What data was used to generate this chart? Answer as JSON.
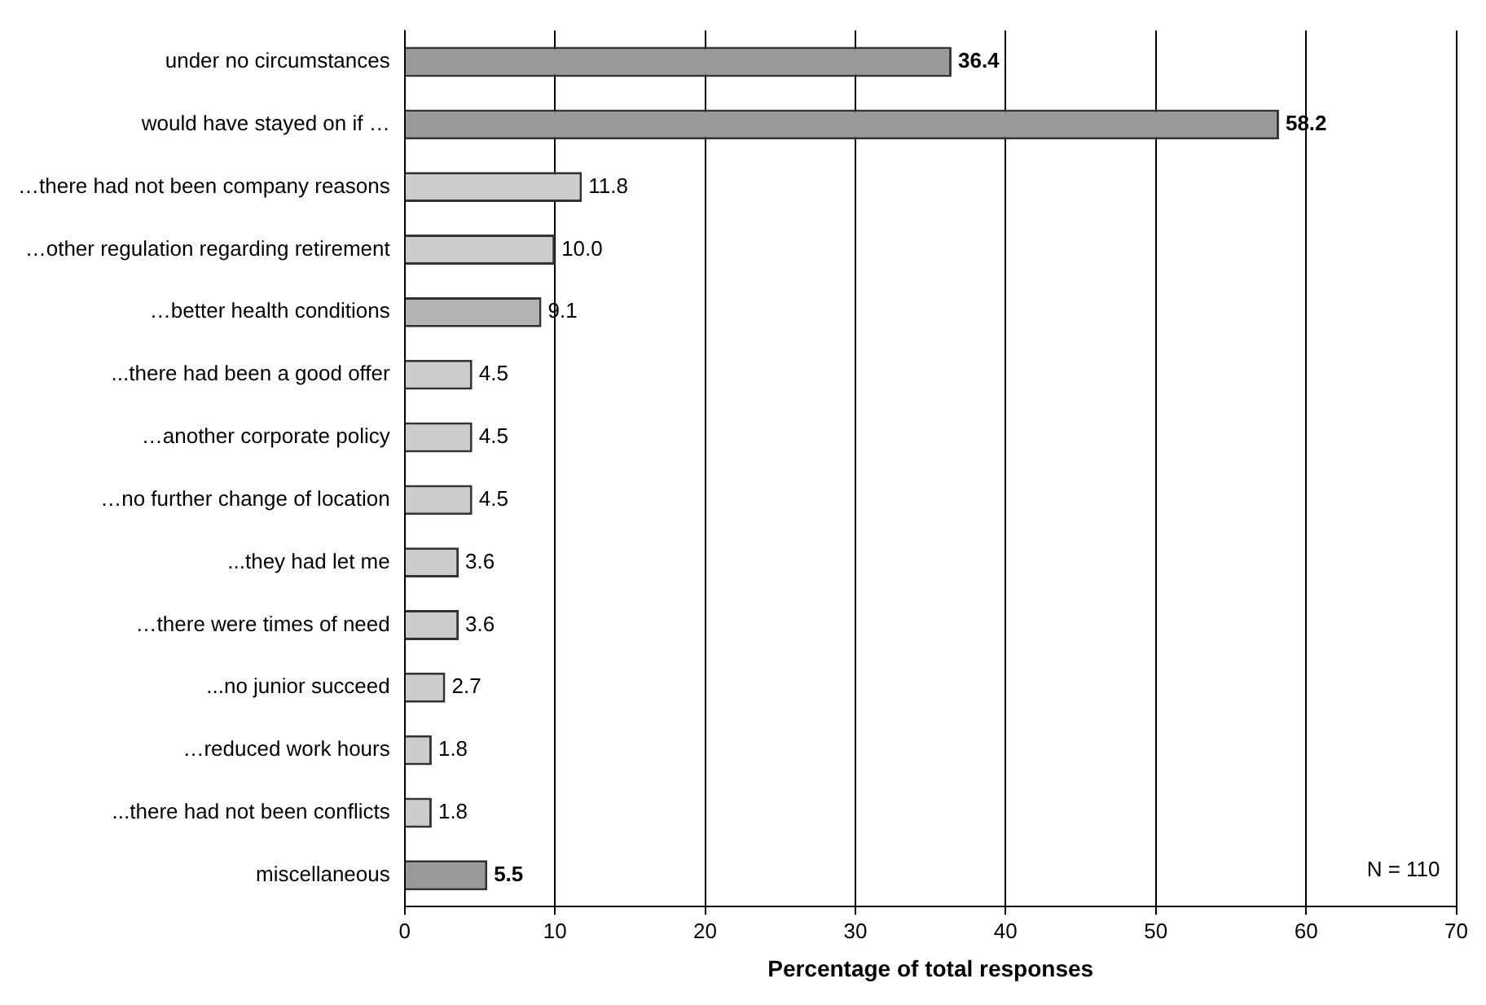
{
  "chart_data": {
    "type": "bar",
    "orientation": "horizontal",
    "xlabel": "Percentage of total responses",
    "categories": [
      "under no circumstances",
      "would have stayed on if …",
      "…there had not been company reasons",
      "…other regulation regarding retirement",
      "…better health conditions",
      "...there had been a good offer",
      "…another corporate policy",
      "…no further change of location",
      "...they had let me",
      "…there were times of need",
      "...no junior succeed",
      "…reduced work hours",
      "...there had not been conflicts",
      "miscellaneous"
    ],
    "values": [
      36.4,
      58.2,
      11.8,
      10.0,
      9.1,
      4.5,
      4.5,
      4.5,
      3.6,
      3.6,
      2.7,
      1.8,
      1.8,
      5.5
    ],
    "colors": [
      "#999999",
      "#999999",
      "#cccccc",
      "#cccccc",
      "#b3b3b3",
      "#cccccc",
      "#cccccc",
      "#cccccc",
      "#cccccc",
      "#cccccc",
      "#cccccc",
      "#cccccc",
      "#cccccc",
      "#999999"
    ],
    "value_labels": [
      "36.4",
      "58.2",
      "11.8",
      "10.0",
      "9.1",
      "4.5",
      "4.5",
      "4.5",
      "3.6",
      "3.6",
      "2.7",
      "1.8",
      "1.8",
      "5.5"
    ],
    "xlim": [
      0,
      70
    ],
    "xticks": [
      0,
      10,
      20,
      30,
      40,
      50,
      60,
      70
    ],
    "grid": "x",
    "annotations": [
      "N = 110"
    ]
  }
}
